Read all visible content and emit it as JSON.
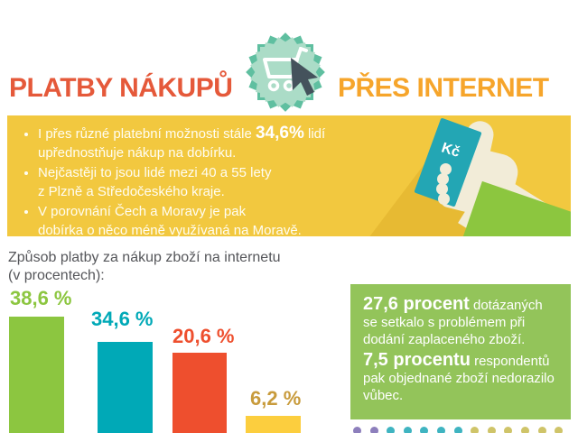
{
  "header": {
    "title_left": "PLATBY NÁKUPŮ",
    "title_right": "PŘES INTERNET",
    "badge_icon": "shopping-cart-with-cursor",
    "colors": {
      "title_left": "#e5593a",
      "title_right": "#f6a52b",
      "badge_outer": "#5fbfa0",
      "badge_inner": "#abdcc7",
      "cursor": "#44525c"
    }
  },
  "intro_box": {
    "background": "#f2c83f",
    "bullet1_pre": "I přes různé platební možnosti stále ",
    "bullet1_highlight": "34,6%",
    "bullet1_post": " lidí\nupřednostňuje nákup na dobírku.",
    "bullet2": "Nejčastěji to jsou lidé mezi 40 a 55 lety\n z Plzně a Středočeského kraje.",
    "bullet3": "V porovnání Čech a Moravy je pak\n dobírka o něco méně využívaná na Moravě.",
    "banknote_label": "Kč",
    "banknote_color": "#23a6b4",
    "sleeve_color": "#8cc63f"
  },
  "chart_data": {
    "type": "bar",
    "title": "Způsob platby za nákup zboží na internetu",
    "subtitle": "(v procentech):",
    "categories": [
      "",
      "",
      "",
      ""
    ],
    "values": [
      38.6,
      34.6,
      20.6,
      6.2
    ],
    "value_labels": [
      "38,6 %",
      "34,6 %",
      "20,6 %",
      "6,2 %"
    ],
    "bar_colors": [
      "#8cc640",
      "#00a9b7",
      "#ee4f2e",
      "#fcce3e"
    ],
    "label_colors": [
      "#8cc640",
      "#00a9b7",
      "#ee4f2e",
      "#c89b3c"
    ],
    "grid": false,
    "orientation": "vertical",
    "value_label_position": "above-bar"
  },
  "fact_box": {
    "background": "#93c45a",
    "fact1_number": "27,6 procent",
    "fact1_text": " dotázaných se setkalo s problémem při dodání zaplaceného zboží.",
    "fact2_number": "7,5 procentu",
    "fact2_text": " respondentů pak objednané zboží nedorazilo vůbec."
  },
  "pictogram_row": {
    "icon": "person-head-dot",
    "dot_colors": [
      "#8d7fbc",
      "#8d7fbc",
      "#3fb4c1",
      "#3fb4c1",
      "#3fb4c1",
      "#3fb4c1",
      "#3fb4c1",
      "#cfc469",
      "#cfc469",
      "#cfc469",
      "#cfc469",
      "#cfc469",
      "#cfc469"
    ]
  }
}
